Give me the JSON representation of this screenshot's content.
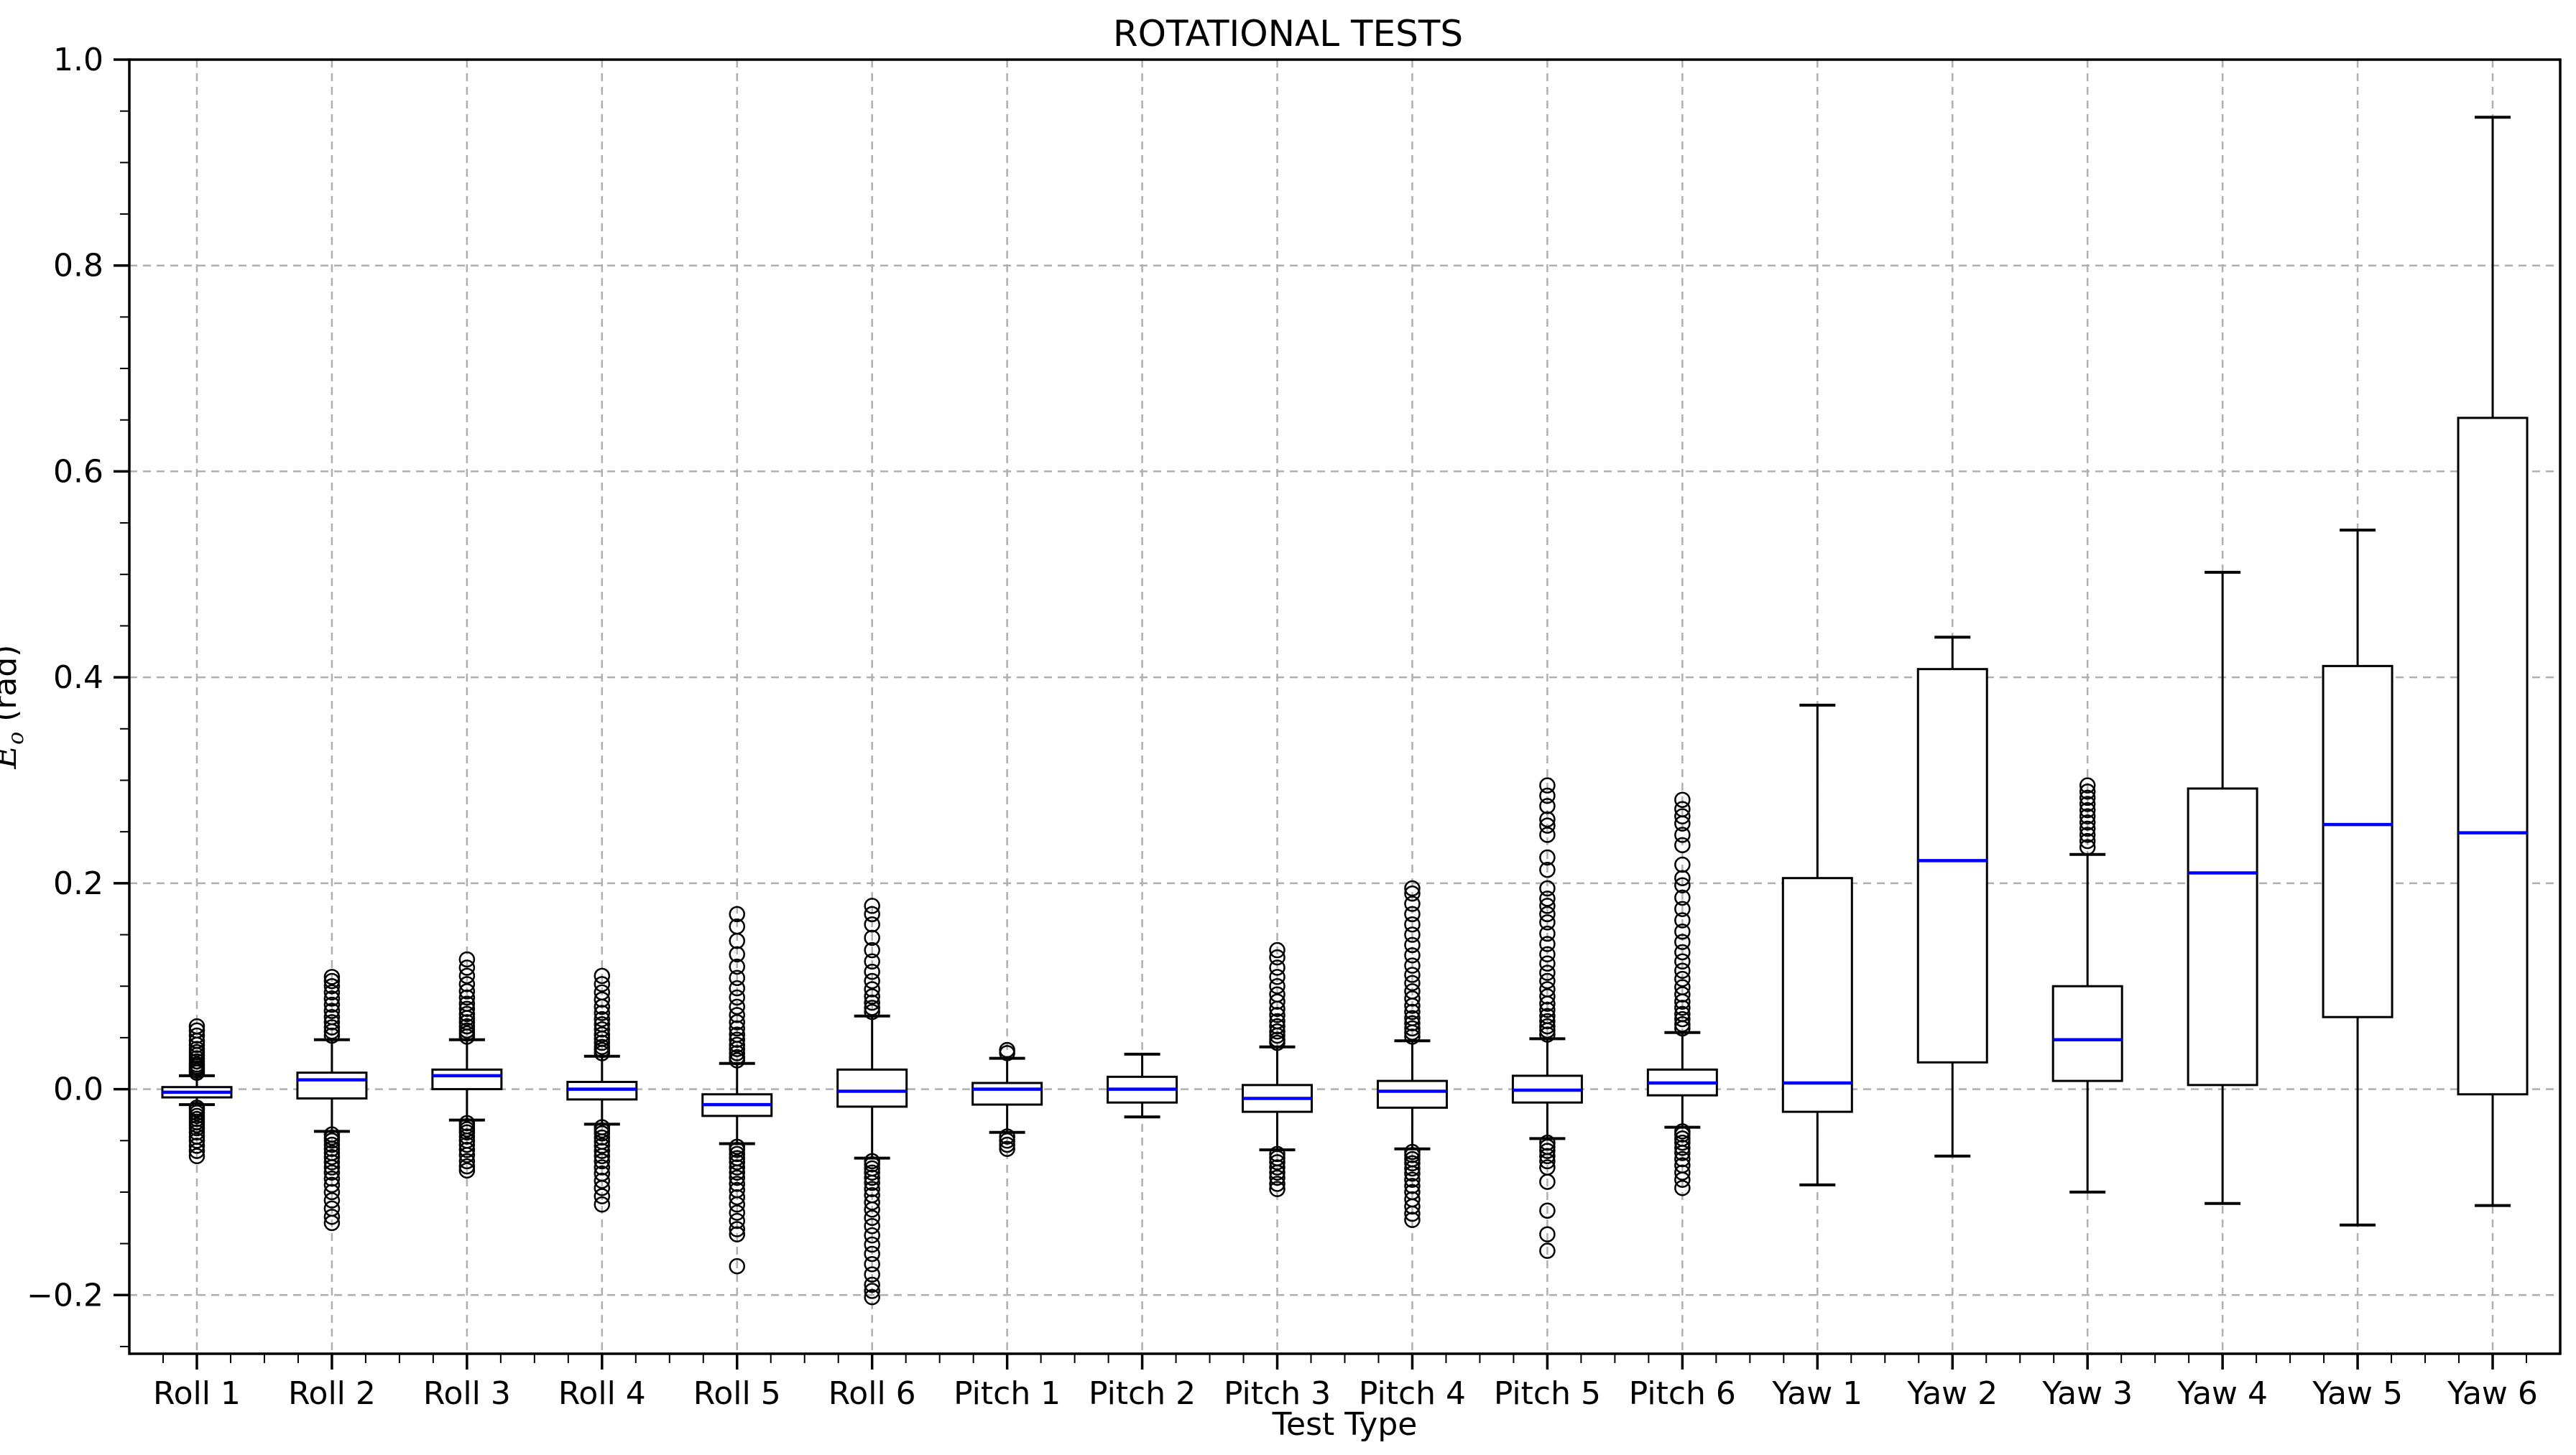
{
  "title": {
    "text": "ROTATIONAL TESTS"
  },
  "axes": {
    "xlabel": "Test Type",
    "ylabel": {
      "var": "E",
      "sub": "o",
      "unit": " (rad)"
    }
  },
  "chart_data": {
    "type": "boxplot",
    "title": "ROTATIONAL TESTS",
    "xlabel": "Test Type",
    "ylabel": "E_o (rad)",
    "ylim": [
      -0.257,
      1.0
    ],
    "yticks": [
      {
        "value": 1.0,
        "label": "1.0"
      },
      {
        "value": 0.8,
        "label": "0.8"
      },
      {
        "value": 0.6,
        "label": "0.6"
      },
      {
        "value": 0.4,
        "label": "0.4"
      },
      {
        "value": 0.2,
        "label": "0.2"
      },
      {
        "value": 0.0,
        "label": "0.0"
      },
      {
        "value": -0.2,
        "label": "−0.2"
      }
    ],
    "y_minor_tick_step": 0.05,
    "grid": {
      "horizontal": true,
      "vertical": true,
      "style": "dashed",
      "color": "#b0b0b0"
    },
    "colors": {
      "box": "#000000",
      "median": "#0000ff",
      "whisker": "#000000",
      "flier": "#000000",
      "background": "#ffffff"
    },
    "categories": [
      "Roll 1",
      "Roll 2",
      "Roll 3",
      "Roll 4",
      "Roll 5",
      "Roll 6",
      "Pitch 1",
      "Pitch 2",
      "Pitch 3",
      "Pitch 4",
      "Pitch 5",
      "Pitch 6",
      "Yaw 1",
      "Yaw 2",
      "Yaw 3",
      "Yaw 4",
      "Yaw 5",
      "Yaw 6"
    ],
    "boxes": [
      {
        "name": "Roll 1",
        "whislo": -0.015,
        "q1": -0.008,
        "med": -0.003,
        "q3": 0.002,
        "whishi": 0.013,
        "fliers_high": [
          0.016,
          0.018,
          0.02,
          0.022,
          0.024,
          0.027,
          0.03,
          0.033,
          0.036,
          0.039,
          0.043,
          0.047,
          0.052,
          0.057,
          0.061
        ],
        "fliers_low": [
          -0.018,
          -0.02,
          -0.023,
          -0.026,
          -0.029,
          -0.032,
          -0.035,
          -0.038,
          -0.042,
          -0.046,
          -0.05,
          -0.055,
          -0.06,
          -0.065
        ]
      },
      {
        "name": "Roll 2",
        "whislo": -0.041,
        "q1": -0.009,
        "med": 0.009,
        "q3": 0.016,
        "whishi": 0.048,
        "fliers_high": [
          0.052,
          0.056,
          0.06,
          0.065,
          0.07,
          0.076,
          0.082,
          0.088,
          0.094,
          0.1,
          0.105,
          0.109
        ],
        "fliers_low": [
          -0.044,
          -0.047,
          -0.05,
          -0.054,
          -0.058,
          -0.062,
          -0.066,
          -0.071,
          -0.076,
          -0.081,
          -0.087,
          -0.093,
          -0.1,
          -0.108,
          -0.116,
          -0.124,
          -0.13
        ]
      },
      {
        "name": "Roll 3",
        "whislo": -0.03,
        "q1": 0.0,
        "med": 0.013,
        "q3": 0.019,
        "whishi": 0.048,
        "fliers_high": [
          0.051,
          0.054,
          0.057,
          0.061,
          0.065,
          0.069,
          0.073,
          0.078,
          0.083,
          0.089,
          0.095,
          0.102,
          0.11,
          0.118,
          0.126
        ],
        "fliers_low": [
          -0.033,
          -0.036,
          -0.039,
          -0.042,
          -0.046,
          -0.05,
          -0.054,
          -0.059,
          -0.064,
          -0.07,
          -0.075,
          -0.079
        ]
      },
      {
        "name": "Roll 4",
        "whislo": -0.034,
        "q1": -0.01,
        "med": 0.0,
        "q3": 0.007,
        "whishi": 0.032,
        "fliers_high": [
          0.035,
          0.038,
          0.041,
          0.045,
          0.049,
          0.053,
          0.058,
          0.063,
          0.068,
          0.074,
          0.08,
          0.087,
          0.094,
          0.102,
          0.11
        ],
        "fliers_low": [
          -0.037,
          -0.04,
          -0.043,
          -0.047,
          -0.051,
          -0.055,
          -0.06,
          -0.065,
          -0.07,
          -0.076,
          -0.082,
          -0.089,
          -0.096,
          -0.104,
          -0.112
        ]
      },
      {
        "name": "Roll 5",
        "whislo": -0.053,
        "q1": -0.026,
        "med": -0.015,
        "q3": -0.005,
        "whishi": 0.025,
        "fliers_high": [
          0.028,
          0.031,
          0.035,
          0.039,
          0.043,
          0.048,
          0.053,
          0.059,
          0.065,
          0.072,
          0.08,
          0.089,
          0.098,
          0.108,
          0.119,
          0.131,
          0.144,
          0.158,
          0.17
        ],
        "fliers_low": [
          -0.056,
          -0.059,
          -0.063,
          -0.067,
          -0.071,
          -0.076,
          -0.081,
          -0.086,
          -0.092,
          -0.098,
          -0.105,
          -0.112,
          -0.12,
          -0.128,
          -0.136,
          -0.141,
          -0.172
        ]
      },
      {
        "name": "Roll 6",
        "whislo": -0.067,
        "q1": -0.017,
        "med": -0.002,
        "q3": 0.019,
        "whishi": 0.071,
        "fliers_high": [
          0.075,
          0.079,
          0.084,
          0.09,
          0.097,
          0.105,
          0.114,
          0.124,
          0.135,
          0.147,
          0.16,
          0.17,
          0.178
        ],
        "fliers_low": [
          -0.07,
          -0.073,
          -0.077,
          -0.081,
          -0.086,
          -0.091,
          -0.097,
          -0.103,
          -0.11,
          -0.117,
          -0.125,
          -0.133,
          -0.142,
          -0.151,
          -0.16,
          -0.17,
          -0.18,
          -0.19,
          -0.196,
          -0.202
        ]
      },
      {
        "name": "Pitch 1",
        "whislo": -0.042,
        "q1": -0.015,
        "med": 0.0,
        "q3": 0.006,
        "whishi": 0.03,
        "fliers_high": [
          0.035,
          0.038
        ],
        "fliers_low": [
          -0.046,
          -0.05,
          -0.054,
          -0.058
        ]
      },
      {
        "name": "Pitch 2",
        "whislo": -0.027,
        "q1": -0.013,
        "med": 0.0,
        "q3": 0.012,
        "whishi": 0.034,
        "fliers_high": [],
        "fliers_low": []
      },
      {
        "name": "Pitch 3",
        "whislo": -0.059,
        "q1": -0.022,
        "med": -0.009,
        "q3": 0.004,
        "whishi": 0.041,
        "fliers_high": [
          0.045,
          0.048,
          0.052,
          0.056,
          0.061,
          0.066,
          0.072,
          0.078,
          0.085,
          0.092,
          0.1,
          0.109,
          0.118,
          0.128,
          0.135
        ],
        "fliers_low": [
          -0.063,
          -0.067,
          -0.071,
          -0.076,
          -0.081,
          -0.086,
          -0.092,
          -0.097
        ]
      },
      {
        "name": "Pitch 4",
        "whislo": -0.058,
        "q1": -0.018,
        "med": -0.002,
        "q3": 0.008,
        "whishi": 0.047,
        "fliers_high": [
          0.051,
          0.055,
          0.059,
          0.064,
          0.069,
          0.075,
          0.081,
          0.088,
          0.095,
          0.103,
          0.111,
          0.12,
          0.13,
          0.14,
          0.15,
          0.16,
          0.17,
          0.18,
          0.19,
          0.195
        ],
        "fliers_low": [
          -0.061,
          -0.064,
          -0.068,
          -0.072,
          -0.077,
          -0.082,
          -0.088,
          -0.094,
          -0.1,
          -0.107,
          -0.114,
          -0.121,
          -0.127
        ]
      },
      {
        "name": "Pitch 5",
        "whislo": -0.048,
        "q1": -0.013,
        "med": -0.001,
        "q3": 0.013,
        "whishi": 0.049,
        "fliers_high": [
          0.053,
          0.057,
          0.061,
          0.066,
          0.071,
          0.077,
          0.083,
          0.09,
          0.097,
          0.105,
          0.113,
          0.122,
          0.131,
          0.141,
          0.151,
          0.162,
          0.17,
          0.178,
          0.185,
          0.195,
          0.213,
          0.225,
          0.247,
          0.256,
          0.262,
          0.275,
          0.285,
          0.295
        ],
        "fliers_low": [
          -0.052,
          -0.056,
          -0.06,
          -0.065,
          -0.07,
          -0.076,
          -0.09,
          -0.118,
          -0.141,
          -0.157
        ]
      },
      {
        "name": "Pitch 6",
        "whislo": -0.037,
        "q1": -0.006,
        "med": 0.006,
        "q3": 0.019,
        "whishi": 0.055,
        "fliers_high": [
          0.059,
          0.063,
          0.068,
          0.073,
          0.079,
          0.085,
          0.092,
          0.099,
          0.107,
          0.115,
          0.124,
          0.133,
          0.143,
          0.153,
          0.164,
          0.175,
          0.186,
          0.198,
          0.205,
          0.218,
          0.237,
          0.247,
          0.258,
          0.265,
          0.272,
          0.281
        ],
        "fliers_low": [
          -0.041,
          -0.044,
          -0.048,
          -0.052,
          -0.057,
          -0.062,
          -0.068,
          -0.074,
          -0.081,
          -0.088,
          -0.096
        ]
      },
      {
        "name": "Yaw 1",
        "whislo": -0.093,
        "q1": -0.022,
        "med": 0.006,
        "q3": 0.205,
        "whishi": 0.373,
        "fliers_high": [],
        "fliers_low": []
      },
      {
        "name": "Yaw 2",
        "whislo": -0.065,
        "q1": 0.026,
        "med": 0.222,
        "q3": 0.408,
        "whishi": 0.439,
        "fliers_high": [],
        "fliers_low": []
      },
      {
        "name": "Yaw 3",
        "whislo": -0.1,
        "q1": 0.008,
        "med": 0.048,
        "q3": 0.1,
        "whishi": 0.228,
        "fliers_high": [
          0.235,
          0.241,
          0.247,
          0.253,
          0.259,
          0.265,
          0.271,
          0.277,
          0.283,
          0.289,
          0.295
        ],
        "fliers_low": []
      },
      {
        "name": "Yaw 4",
        "whislo": -0.111,
        "q1": 0.004,
        "med": 0.21,
        "q3": 0.292,
        "whishi": 0.502,
        "fliers_high": [],
        "fliers_low": []
      },
      {
        "name": "Yaw 5",
        "whislo": -0.132,
        "q1": 0.07,
        "med": 0.257,
        "q3": 0.411,
        "whishi": 0.543,
        "fliers_high": [],
        "fliers_low": []
      },
      {
        "name": "Yaw 6",
        "whislo": -0.113,
        "q1": -0.005,
        "med": 0.249,
        "q3": 0.652,
        "whishi": 0.944,
        "fliers_high": [],
        "fliers_low": []
      }
    ]
  }
}
